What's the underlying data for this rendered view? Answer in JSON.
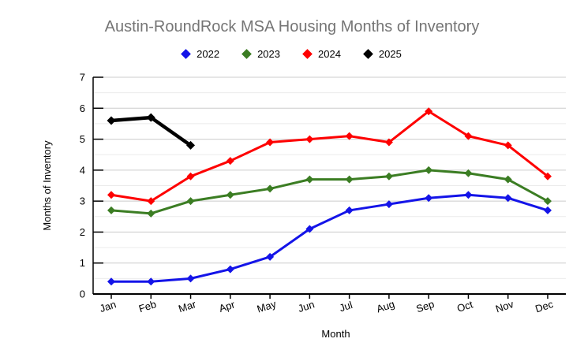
{
  "chart_data": {
    "type": "line",
    "title": "Austin-RoundRock MSA Housing Months of Inventory",
    "xlabel": "Month",
    "ylabel": "Months of Inventory",
    "categories": [
      "Jan",
      "Feb",
      "Mar",
      "Apr",
      "May",
      "Jun",
      "Jul",
      "Aug",
      "Sep",
      "Oct",
      "Nov",
      "Dec"
    ],
    "ylim": [
      0,
      7
    ],
    "y_tick_step": 1,
    "y_minor_step": 0.5,
    "grid": true,
    "legend_position": "top-center",
    "marker": "diamond",
    "series": [
      {
        "name": "2022",
        "color": "#1414e8",
        "line_width": 3,
        "values": [
          0.4,
          0.4,
          0.5,
          0.8,
          1.2,
          2.1,
          2.7,
          2.9,
          3.1,
          3.2,
          3.1,
          2.7
        ]
      },
      {
        "name": "2023",
        "color": "#3b7d23",
        "line_width": 3,
        "values": [
          2.7,
          2.6,
          3.0,
          3.2,
          3.4,
          3.7,
          3.7,
          3.8,
          4.0,
          3.9,
          3.7,
          3.0
        ]
      },
      {
        "name": "2024",
        "color": "#fe0000",
        "line_width": 3,
        "values": [
          3.2,
          3.0,
          3.8,
          4.3,
          4.9,
          5.0,
          5.1,
          4.9,
          5.9,
          5.1,
          4.8,
          3.8
        ]
      },
      {
        "name": "2025",
        "color": "#000000",
        "line_width": 4.5,
        "values": [
          5.6,
          5.7,
          4.8,
          null,
          null,
          null,
          null,
          null,
          null,
          null,
          null,
          null
        ]
      }
    ]
  },
  "styles": {
    "title_color": "#757575",
    "axis_color": "#000000",
    "major_grid_color": "#cccccc",
    "minor_grid_color": "#ebebeb",
    "background": "#ffffff"
  }
}
